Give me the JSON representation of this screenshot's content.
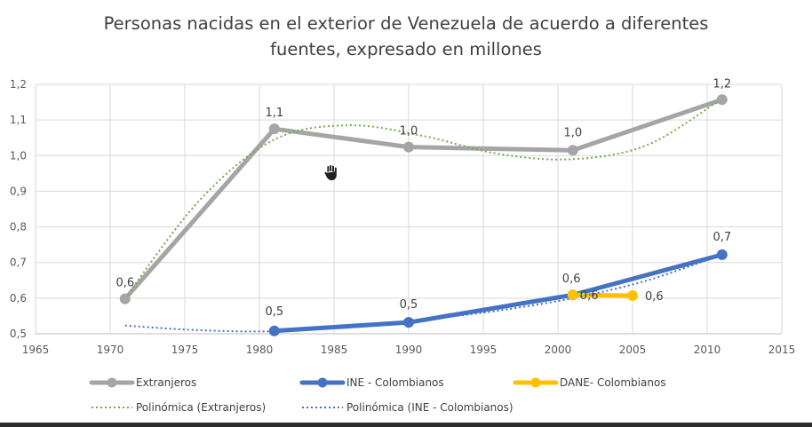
{
  "chart_data": {
    "type": "line",
    "title": [
      "Personas nacidas en el exterior de Venezuela de acuerdo a diferentes",
      "fuentes, expresado en millones"
    ],
    "xlim": [
      1965,
      2015
    ],
    "ylim": [
      0.5,
      1.2
    ],
    "x_ticks": [
      "1965",
      "1970",
      "1975",
      "1980",
      "1985",
      "1990",
      "1995",
      "2000",
      "2005",
      "2010",
      "2015"
    ],
    "y_ticks": [
      "0,5",
      "0,6",
      "0,7",
      "0,8",
      "0,9",
      "1,0",
      "1,1",
      "1,2"
    ],
    "grid": true,
    "legend_position": "bottom",
    "series": [
      {
        "name": "Extranjeros",
        "color": "#a5a5a5",
        "x": [
          1971,
          1981,
          1990,
          2001,
          2011
        ],
        "y": [
          0.598,
          1.075,
          1.024,
          1.015,
          1.157
        ],
        "labels": [
          "0,6",
          "1,1",
          "1,0",
          "1,0",
          "1,2"
        ]
      },
      {
        "name": "INE - Colombianos",
        "color": "#4472c4",
        "x": [
          1981,
          1990,
          2001,
          2011
        ],
        "y": [
          0.508,
          0.532,
          0.609,
          0.722
        ],
        "labels": [
          "0,5",
          "0,5",
          "0,6",
          "0,7"
        ]
      },
      {
        "name": "DANE- Colombianos",
        "color": "#ffc000",
        "x": [
          2001,
          2005
        ],
        "y": [
          0.609,
          0.607
        ],
        "labels": [
          "0,6",
          "0,6"
        ]
      }
    ],
    "trendlines": [
      {
        "name": "Polinómica (Extranjeros)",
        "color": "#70ad47",
        "x": [
          1971,
          1976,
          1981,
          1986,
          1991,
          1996,
          2001,
          2006,
          2011
        ],
        "y": [
          0.6,
          0.875,
          1.045,
          1.085,
          1.055,
          1.005,
          0.99,
          1.03,
          1.16
        ]
      },
      {
        "name": "Polinómica (INE - Colombianos)",
        "color": "#4472c4",
        "x": [
          1971,
          1976,
          1981,
          1986,
          1991,
          1996,
          2001,
          2006,
          2011
        ],
        "y": [
          0.523,
          0.51,
          0.507,
          0.52,
          0.54,
          0.565,
          0.6,
          0.65,
          0.722
        ]
      }
    ]
  }
}
